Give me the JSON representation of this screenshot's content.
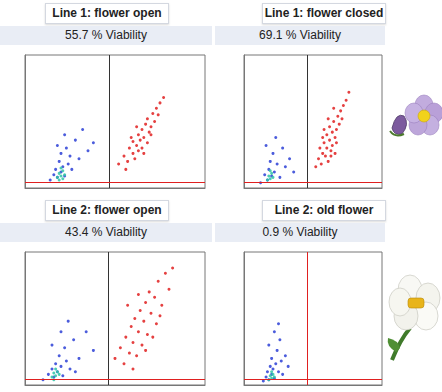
{
  "chart_data": [
    {
      "type": "scatter",
      "title": "Line 1: flower open",
      "subtitle": "55.7 % Viability",
      "xlim": [
        0,
        100
      ],
      "ylim": [
        0,
        100
      ],
      "tick_labels": false,
      "marker": "circle",
      "gates": {
        "x": 47,
        "y": 4
      },
      "series": [
        {
          "color": "#e02020",
          "x": [
            52,
            55,
            57,
            58,
            60,
            60,
            61,
            62,
            63,
            63,
            64,
            65,
            65,
            66,
            67,
            68,
            68,
            69,
            70,
            71,
            72,
            73,
            74,
            75,
            77,
            56,
            59,
            66,
            70,
            62
          ],
          "values": [
            18,
            24,
            20,
            30,
            26,
            35,
            22,
            32,
            40,
            28,
            36,
            30,
            44,
            38,
            48,
            34,
            52,
            42,
            46,
            56,
            50,
            60,
            55,
            64,
            68,
            14,
            38,
            26,
            40,
            46
          ]
        },
        {
          "color": "#2b3fd6",
          "x": [
            14,
            16,
            17,
            18,
            19,
            20,
            20,
            21,
            22,
            23,
            24,
            25,
            26,
            28,
            30,
            32,
            35,
            38,
            18,
            22
          ],
          "values": [
            6,
            10,
            14,
            8,
            20,
            12,
            26,
            16,
            9,
            30,
            18,
            24,
            14,
            36,
            22,
            44,
            28,
            34,
            32,
            40
          ]
        },
        {
          "color": "#2ec4a6",
          "x": [
            18,
            19,
            20,
            21,
            22,
            20,
            19,
            21
          ],
          "values": [
            8,
            11,
            9,
            13,
            10,
            15,
            6,
            7
          ]
        }
      ]
    },
    {
      "type": "scatter",
      "title": "Line 1: flower closed",
      "subtitle": "69.1 % Viability",
      "xlim": [
        0,
        100
      ],
      "ylim": [
        0,
        100
      ],
      "tick_labels": false,
      "marker": "circle",
      "gates": {
        "x": 46,
        "y": 4
      },
      "series": [
        {
          "color": "#e02020",
          "x": [
            52,
            54,
            55,
            56,
            57,
            58,
            59,
            60,
            60,
            61,
            62,
            62,
            63,
            64,
            64,
            65,
            66,
            66,
            67,
            68,
            69,
            70,
            71,
            72,
            74,
            76,
            58,
            61,
            63,
            67,
            57,
            65
          ],
          "values": [
            16,
            22,
            30,
            18,
            26,
            34,
            24,
            40,
            30,
            20,
            36,
            46,
            28,
            42,
            32,
            50,
            38,
            26,
            44,
            54,
            48,
            58,
            52,
            62,
            66,
            72,
            44,
            52,
            24,
            34,
            38,
            60
          ]
        },
        {
          "color": "#2b3fd6",
          "x": [
            12,
            15,
            17,
            18,
            19,
            20,
            21,
            22,
            24,
            26,
            28,
            30,
            33,
            16,
            23,
            36
          ],
          "values": [
            4,
            10,
            6,
            14,
            20,
            9,
            26,
            12,
            18,
            8,
            30,
            16,
            22,
            32,
            38,
            12
          ]
        },
        {
          "color": "#2ec4a6",
          "x": [
            17,
            18,
            19,
            20,
            21,
            19
          ],
          "values": [
            6,
            9,
            7,
            11,
            8,
            13
          ]
        }
      ]
    },
    {
      "type": "scatter",
      "title": "Line 2: flower open",
      "subtitle": "43.4 % Viability",
      "xlim": [
        0,
        100
      ],
      "ylim": [
        0,
        100
      ],
      "tick_labels": false,
      "marker": "circle",
      "gates": {
        "x": 46,
        "y": 4
      },
      "series": [
        {
          "color": "#e02020",
          "x": [
            50,
            53,
            55,
            56,
            58,
            59,
            60,
            61,
            62,
            63,
            64,
            65,
            66,
            67,
            68,
            69,
            70,
            72,
            73,
            74,
            76,
            78,
            80,
            82,
            57,
            63,
            67,
            71,
            60,
            75
          ],
          "values": [
            20,
            28,
            16,
            36,
            24,
            44,
            32,
            50,
            22,
            40,
            56,
            30,
            48,
            62,
            38,
            70,
            54,
            66,
            46,
            78,
            60,
            84,
            72,
            88,
            60,
            68,
            26,
            36,
            12,
            52
          ]
        },
        {
          "color": "#2b3fd6",
          "x": [
            10,
            13,
            15,
            16,
            17,
            18,
            19,
            20,
            21,
            22,
            23,
            25,
            27,
            30,
            34,
            38,
            20,
            24,
            15,
            28
          ],
          "values": [
            4,
            8,
            12,
            6,
            16,
            10,
            22,
            14,
            7,
            28,
            18,
            12,
            34,
            20,
            40,
            26,
            40,
            48,
            30,
            10
          ]
        },
        {
          "color": "#2ec4a6",
          "x": [
            15,
            16,
            17,
            18,
            17,
            16,
            19
          ],
          "values": [
            6,
            9,
            7,
            10,
            12,
            4,
            8
          ]
        }
      ]
    },
    {
      "type": "scatter",
      "title": "Line 2: old flower",
      "subtitle": "0.9 % Viability",
      "xlim": [
        0,
        100
      ],
      "ylim": [
        0,
        100
      ],
      "tick_labels": false,
      "marker": "circle",
      "gates": {
        "x": 46,
        "y": 4
      },
      "series": [
        {
          "color": "#2b3fd6",
          "x": [
            14,
            16,
            17,
            18,
            19,
            20,
            20,
            21,
            22,
            23,
            24,
            25,
            26,
            27,
            28,
            30,
            32,
            22,
            18,
            25
          ],
          "values": [
            3,
            6,
            10,
            4,
            14,
            8,
            20,
            12,
            5,
            16,
            26,
            10,
            34,
            18,
            8,
            22,
            14,
            40,
            30,
            46
          ]
        },
        {
          "color": "#2ec4a6",
          "x": [
            18,
            19,
            20,
            21,
            20,
            22
          ],
          "values": [
            4,
            7,
            5,
            8,
            10,
            6
          ]
        }
      ]
    }
  ]
}
